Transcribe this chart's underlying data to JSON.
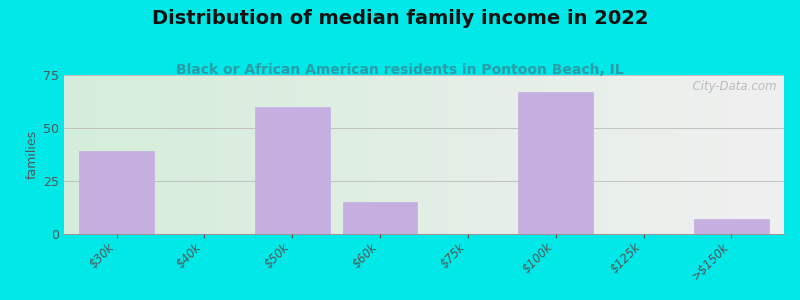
{
  "title": "Distribution of median family income in 2022",
  "subtitle": "Black or African American residents in Pontoon Beach, IL",
  "categories": [
    "$30k",
    "$40k",
    "$50k",
    "$60k",
    "$75k",
    "$100k",
    "$125k",
    ">$150k"
  ],
  "values": [
    39,
    0,
    60,
    15,
    0,
    67,
    0,
    7
  ],
  "bar_color": "#c5aee0",
  "bar_edge_color": "#c5aee0",
  "ylabel": "families",
  "ylim": [
    0,
    75
  ],
  "yticks": [
    0,
    25,
    50,
    75
  ],
  "background_color": "#00e8e8",
  "plot_bg_left": "#d4edda",
  "plot_bg_right": "#f0f0f0",
  "title_fontsize": 14,
  "subtitle_fontsize": 10,
  "watermark": "  City-Data.com"
}
